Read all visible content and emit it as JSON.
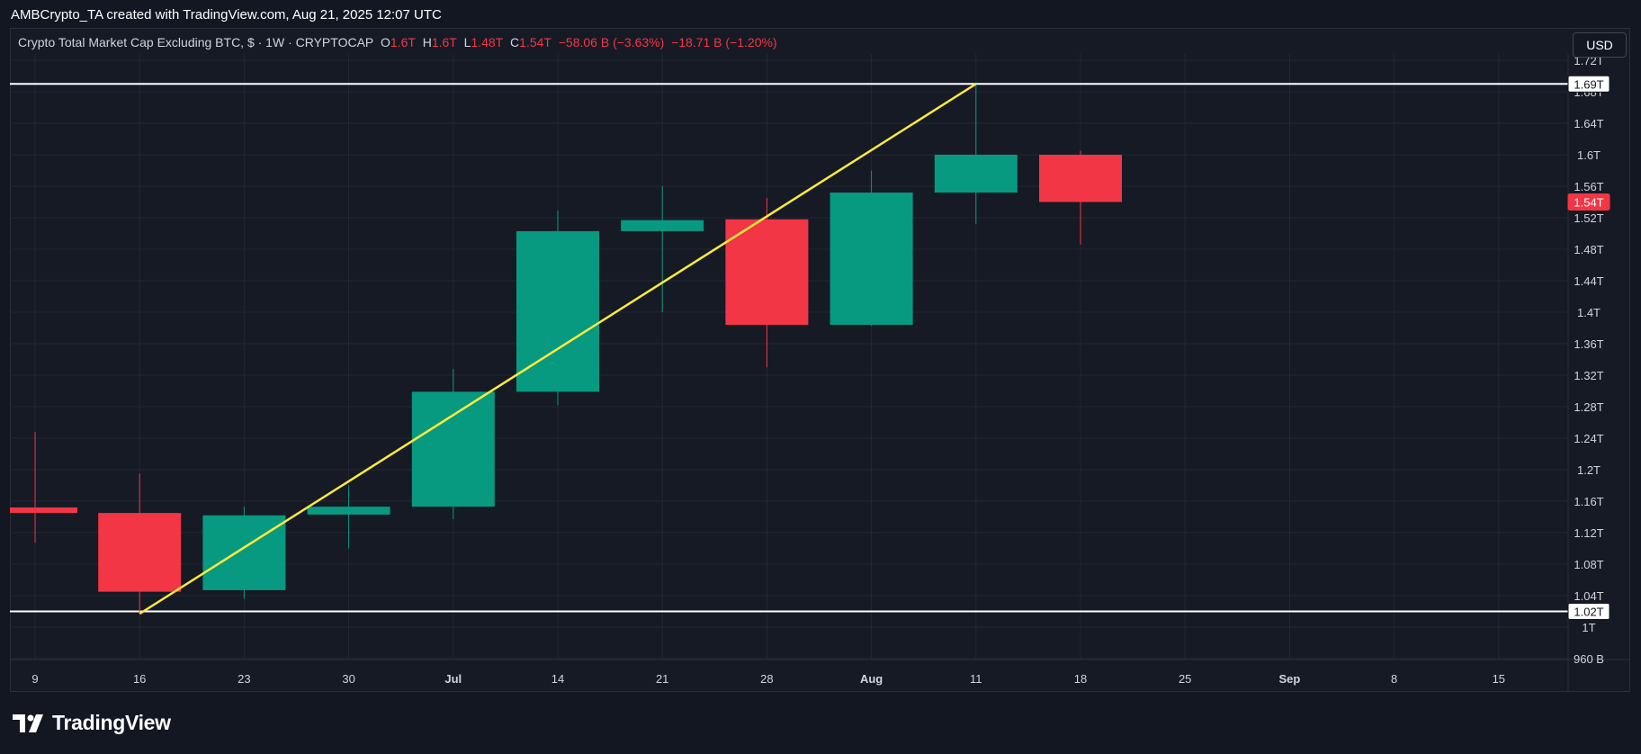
{
  "credit": "AMBCrypto_TA created with TradingView.com, Aug 21, 2025 12:07 UTC",
  "legend": {
    "symbol": "Crypto Total Market Cap Excluding BTC, $ · 1W · CRYPTOCAP",
    "o_label": "O",
    "o_value": "1.6T",
    "h_label": "H",
    "h_value": "1.6T",
    "l_label": "L",
    "l_value": "1.48T",
    "c_label": "C",
    "c_value": "1.54T",
    "change": "−58.06 B (−3.63%)",
    "change2": "−18.71 B (−1.20%)"
  },
  "currency_button": "USD",
  "footer": {
    "brand": "TradingView",
    "logo_icon": "tradingview-logo-icon"
  },
  "colors": {
    "up": "#089981",
    "down": "#f23645",
    "trendline": "#ffeb3b",
    "level": "#ffffff",
    "background": "#161a25"
  },
  "chart_data": {
    "type": "candlestick",
    "interval": "1W",
    "y_unit": "USD (T = trillion)",
    "y_ticks": [
      "960 B",
      "1T",
      "1.04T",
      "1.08T",
      "1.12T",
      "1.16T",
      "1.2T",
      "1.24T",
      "1.28T",
      "1.32T",
      "1.36T",
      "1.4T",
      "1.44T",
      "1.48T",
      "1.52T",
      "1.56T",
      "1.6T",
      "1.64T",
      "1.68T",
      "1.72T"
    ],
    "x_ticks": [
      "9",
      "16",
      "23",
      "30",
      "Jul",
      "14",
      "21",
      "28",
      "Aug",
      "11",
      "18",
      "25",
      "Sep",
      "8",
      "15"
    ],
    "ylim": [
      0.955,
      1.73
    ],
    "candles": [
      {
        "x": "9",
        "open": 1.152,
        "high": 1.248,
        "low": 1.107,
        "close": 1.145
      },
      {
        "x": "16",
        "open": 1.145,
        "high": 1.195,
        "low": 1.017,
        "close": 1.045
      },
      {
        "x": "23",
        "open": 1.047,
        "high": 1.153,
        "low": 1.036,
        "close": 1.142
      },
      {
        "x": "30",
        "open": 1.143,
        "high": 1.18,
        "low": 1.1,
        "close": 1.153
      },
      {
        "x": "Jul",
        "open": 1.153,
        "high": 1.328,
        "low": 1.137,
        "close": 1.299
      },
      {
        "x": "14",
        "open": 1.299,
        "high": 1.529,
        "low": 1.282,
        "close": 1.503
      },
      {
        "x": "21",
        "open": 1.503,
        "high": 1.56,
        "low": 1.4,
        "close": 1.517
      },
      {
        "x": "28",
        "open": 1.518,
        "high": 1.545,
        "low": 1.33,
        "close": 1.384
      },
      {
        "x": "Aug",
        "open": 1.384,
        "high": 1.58,
        "low": 1.383,
        "close": 1.552
      },
      {
        "x": "11",
        "open": 1.552,
        "high": 1.69,
        "low": 1.512,
        "close": 1.6
      },
      {
        "x": "18",
        "open": 1.6,
        "high": 1.605,
        "low": 1.486,
        "close": 1.54
      }
    ],
    "horizontal_levels": [
      {
        "value": 1.69,
        "label": "1.69T"
      },
      {
        "value": 1.02,
        "label": "1.02T"
      }
    ],
    "trendline": {
      "from": {
        "x": "16",
        "y": 1.017
      },
      "to": {
        "x": "11",
        "y": 1.69
      }
    },
    "last_price": {
      "value": 1.54,
      "label": "1.54T"
    },
    "grid": true
  }
}
